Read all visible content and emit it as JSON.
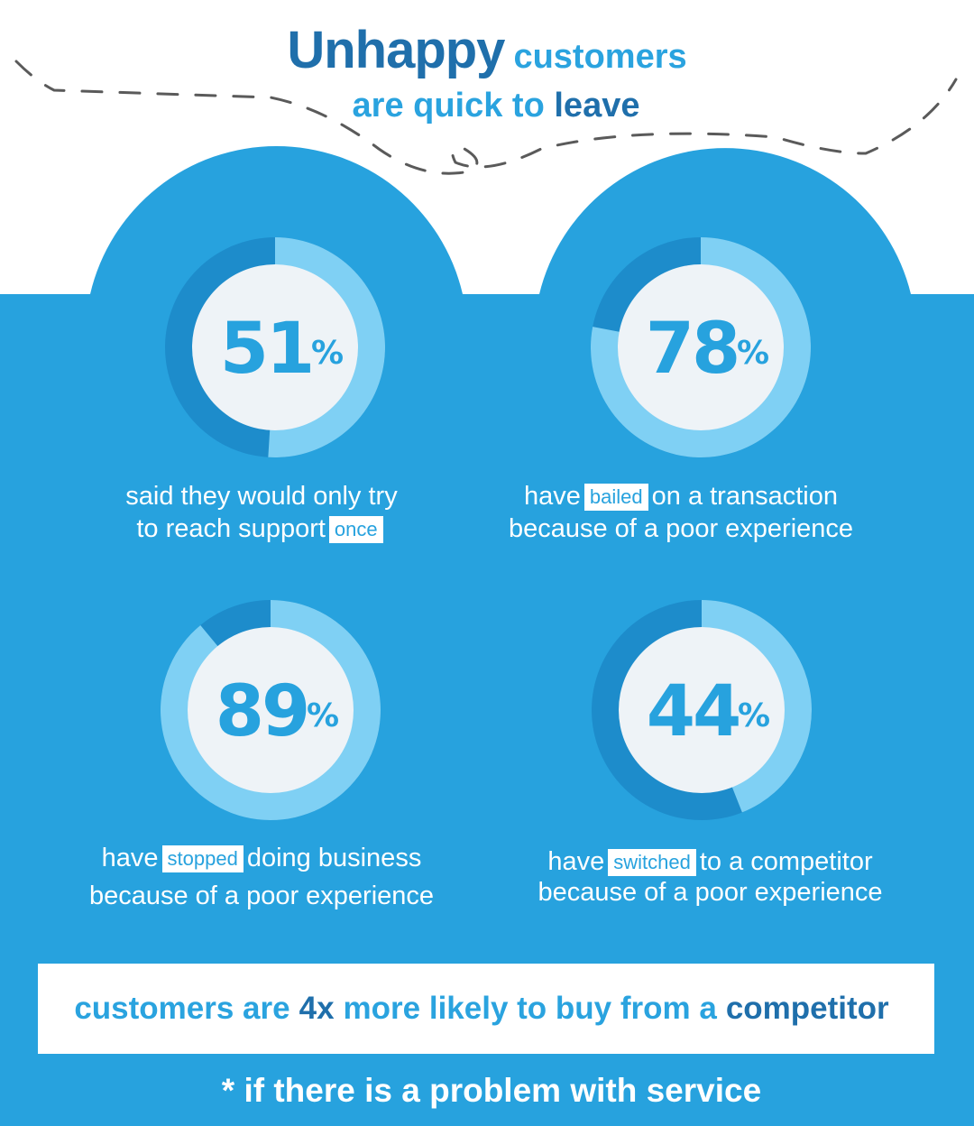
{
  "title": {
    "word1": "Unhappy",
    "word2": "customers",
    "line2_part1": "are quick to",
    "line2_part2": "leave"
  },
  "colors": {
    "background_blue": "#27a2de",
    "ring_dark": "#1d8ccb",
    "ring_light": "#7fd0f4",
    "title_dark": "#1f6fab",
    "title_light": "#2aa3df",
    "circle_fill": "#eef3f7"
  },
  "chart_data": {
    "type": "donut",
    "items": [
      {
        "value": 51,
        "unit": "%",
        "desc_pre": "said they would only try",
        "desc_line2": "to reach support",
        "highlight": "once",
        "desc_post": ""
      },
      {
        "value": 78,
        "unit": "%",
        "desc_pre": "have",
        "highlight": "bailed",
        "desc_post": "on a transaction",
        "desc_line2": "because of a poor experience"
      },
      {
        "value": 89,
        "unit": "%",
        "desc_pre": "have",
        "highlight": "stopped",
        "desc_post": "doing business",
        "desc_line2": "because of a poor experience"
      },
      {
        "value": 44,
        "unit": "%",
        "desc_pre": "have",
        "highlight": "switched",
        "desc_post": "to a competitor",
        "desc_line2": "because of a poor experience"
      }
    ]
  },
  "banner": {
    "pre": "customers are",
    "mid": "4x",
    "post": "more likely to buy from a",
    "end": "competitor"
  },
  "footnote": "* if there is a problem with service"
}
